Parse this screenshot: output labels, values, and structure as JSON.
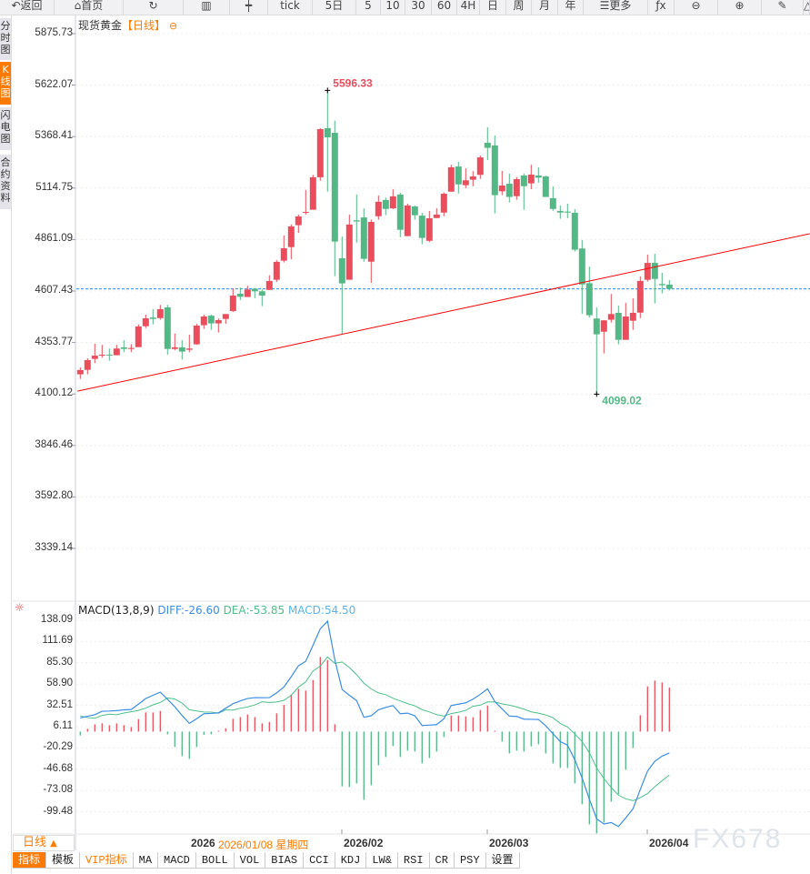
{
  "toolbar": [
    {
      "label": "返回",
      "icon": "back-arrow-icon"
    },
    {
      "label": "首页",
      "icon": "home-icon"
    },
    {
      "label": "",
      "icon": "refresh-icon"
    },
    {
      "label": "",
      "icon": "bar-chart-icon"
    },
    {
      "label": "",
      "icon": "candlestick-icon"
    },
    {
      "label": "tick"
    },
    {
      "label": "5日"
    },
    {
      "label": "5"
    },
    {
      "label": "10"
    },
    {
      "label": "30"
    },
    {
      "label": "60"
    },
    {
      "label": "4H"
    },
    {
      "label": "日"
    },
    {
      "label": "周"
    },
    {
      "label": "月"
    },
    {
      "label": "年"
    },
    {
      "label": "更多",
      "icon": "menu-icon"
    },
    {
      "label": "",
      "icon": "function-fx-icon"
    },
    {
      "label": "",
      "icon": "zoom-out-icon"
    },
    {
      "label": "",
      "icon": "zoom-in-icon"
    },
    {
      "label": "",
      "icon": "pen-icon"
    },
    {
      "label": "",
      "icon": "triangle-icon"
    }
  ],
  "sidebar": [
    {
      "label": "分时图"
    },
    {
      "label": "K线图",
      "active": true
    },
    {
      "label": "闪电图"
    },
    {
      "label": "合约资料"
    }
  ],
  "chart_title": {
    "name": "现货黄金",
    "period": "【日线】"
  },
  "colors": {
    "up": "#eb4d5c",
    "down": "#52b986",
    "diff": "#3a8ee6",
    "dea": "#4cc08a",
    "last_price_line": "#1e90ff",
    "trendline": "#ff0000",
    "accent": "#ff7a00"
  },
  "chart_data": [
    {
      "type": "candlestick",
      "title": "现货黄金【日线】",
      "yticks": [
        "5875.73",
        "5622.07",
        "5368.41",
        "5114.75",
        "4861.09",
        "4607.43",
        "4353.77",
        "4100.12",
        "3846.46",
        "3592.80",
        "3339.14"
      ],
      "ylim": [
        3339.14,
        5875.73
      ],
      "grid": true,
      "xticks": [
        "2026",
        "2026/02",
        "2026/03",
        "2026/04"
      ],
      "crosshair_date": "2026/01/08 星期四",
      "max_label": "5596.33",
      "min_label": "4099.02",
      "last_price": 4618,
      "trendline": [
        [
          -0.4,
          4114
        ],
        [
          100.3,
          4890
        ]
      ],
      "ohlc": [
        [
          4197,
          4231,
          4174,
          4218
        ],
        [
          4219,
          4276,
          4197,
          4267
        ],
        [
          4273,
          4348,
          4252,
          4289
        ],
        [
          4289,
          4342,
          4279,
          4294
        ],
        [
          4294,
          4324,
          4264,
          4291
        ],
        [
          4291,
          4342,
          4291,
          4324
        ],
        [
          4330,
          4365,
          4306,
          4322
        ],
        [
          4322,
          4346,
          4306,
          4327
        ],
        [
          4331,
          4443,
          4331,
          4433
        ],
        [
          4434,
          4491,
          4425,
          4473
        ],
        [
          4477,
          4518,
          4443,
          4470
        ],
        [
          4474,
          4539,
          4466,
          4518
        ],
        [
          4527,
          4539,
          4294,
          4322
        ],
        [
          4322,
          4398,
          4316,
          4330
        ],
        [
          4330,
          4365,
          4270,
          4309
        ],
        [
          4318,
          4392,
          4306,
          4324
        ],
        [
          4345,
          4446,
          4342,
          4437
        ],
        [
          4439,
          4491,
          4421,
          4482
        ],
        [
          4486,
          4491,
          4416,
          4448
        ],
        [
          4448,
          4473,
          4403,
          4464
        ],
        [
          4470,
          4494,
          4446,
          4494
        ],
        [
          4509,
          4621,
          4504,
          4585
        ],
        [
          4594,
          4625,
          4563,
          4579
        ],
        [
          4578,
          4634,
          4578,
          4615
        ],
        [
          4619,
          4622,
          4572,
          4606
        ],
        [
          4606,
          4615,
          4533,
          4585
        ],
        [
          4613,
          4685,
          4613,
          4657
        ],
        [
          4663,
          4760,
          4652,
          4751
        ],
        [
          4757,
          4881,
          4748,
          4818
        ],
        [
          4824,
          4936,
          4764,
          4926
        ],
        [
          4932,
          4984,
          4894,
          4975
        ],
        [
          4993,
          5106,
          4984,
          4997
        ],
        [
          5008,
          5180,
          5008,
          5168
        ],
        [
          5168,
          5410,
          5151,
          5405
        ],
        [
          5410,
          5596.33,
          5097,
          5365
        ],
        [
          5387,
          5447,
          4681,
          4851
        ],
        [
          4769,
          4876,
          4395,
          4645
        ],
        [
          4663,
          4984,
          4663,
          4935
        ],
        [
          4956,
          5083,
          4846,
          4950
        ],
        [
          4970,
          5015,
          4752,
          4766
        ],
        [
          4752,
          4960,
          4648,
          4948
        ],
        [
          4976,
          5078,
          4959,
          5047
        ],
        [
          5056,
          5068,
          4981,
          5012
        ],
        [
          5015,
          5109,
          5011,
          5074
        ],
        [
          5083,
          5091,
          4873,
          4909
        ],
        [
          4878,
          5038,
          4878,
          5029
        ],
        [
          5024,
          5029,
          4959,
          4981
        ],
        [
          4979,
          4993,
          4838,
          4869
        ],
        [
          4855,
          5002,
          4848,
          4966
        ],
        [
          4967,
          5015,
          4967,
          4984
        ],
        [
          4994,
          5093,
          4976,
          5087
        ],
        [
          5097,
          5230,
          5097,
          5217
        ],
        [
          5221,
          5244,
          5088,
          5133
        ],
        [
          5129,
          5212,
          5114,
          5153
        ],
        [
          5156,
          5198,
          5124,
          5172
        ],
        [
          5180,
          5275,
          5160,
          5266
        ],
        [
          5338,
          5414,
          5253,
          5313
        ],
        [
          5325,
          5374,
          4990,
          5080
        ],
        [
          5099,
          5199,
          5080,
          5127
        ],
        [
          5136,
          5186,
          5044,
          5071
        ],
        [
          5075,
          5169,
          5057,
          5159
        ],
        [
          5177,
          5186,
          5008,
          5124
        ],
        [
          5138,
          5230,
          5109,
          5181
        ],
        [
          5177,
          5217,
          5141,
          5166
        ],
        [
          5172,
          5176,
          5071,
          5071
        ],
        [
          5065,
          5123,
          5003,
          5012
        ],
        [
          5002,
          5029,
          4963,
          4994
        ],
        [
          4999,
          5038,
          4966,
          4994
        ],
        [
          4993,
          5011,
          4802,
          4811
        ],
        [
          4817,
          4858,
          4495,
          4640
        ],
        [
          4646,
          4728,
          4477,
          4488
        ],
        [
          4472,
          4527,
          4099.02,
          4394
        ],
        [
          4407,
          4463,
          4300,
          4463
        ],
        [
          4466,
          4593,
          4452,
          4494
        ],
        [
          4500,
          4536,
          4345,
          4367
        ],
        [
          4367,
          4549,
          4367,
          4482
        ],
        [
          4461,
          4572,
          4416,
          4500
        ],
        [
          4501,
          4679,
          4474,
          4657
        ],
        [
          4663,
          4787,
          4654,
          4746
        ],
        [
          4746,
          4791,
          4546,
          4667
        ],
        [
          4642,
          4697,
          4596,
          4636
        ],
        [
          4639,
          4661,
          4610,
          4618
        ]
      ]
    },
    {
      "type": "macd",
      "title": "MACD(13,8,9)",
      "legend": {
        "diff": "DIFF:-26.60",
        "dea": "DEA:-53.85",
        "macd": "MACD:54.50"
      },
      "yticks": [
        "138.09",
        "111.69",
        "85.30",
        "58.90",
        "32.51",
        "6.11",
        "-20.29",
        "-46.68",
        "-73.08",
        "-99.48"
      ],
      "diff": [
        16.9,
        19,
        21,
        25.2,
        25.5,
        26,
        27,
        27.4,
        34,
        41,
        45,
        48.9,
        40,
        30.8,
        20,
        10.2,
        16,
        22.2,
        22.5,
        23.3,
        29,
        34.6,
        38,
        41,
        42.1,
        42,
        42.1,
        48,
        55.3,
        68,
        81.6,
        87.2,
        107,
        127.5,
        136.9,
        89.1,
        52.3,
        45,
        38.4,
        17.7,
        19.6,
        27.1,
        30,
        32.3,
        22.2,
        22.9,
        19.6,
        7.5,
        8,
        8.6,
        15.8,
        32.3,
        34,
        35.7,
        40.2,
        46.2,
        53,
        37.2,
        28.2,
        19.2,
        18.8,
        15.4,
        15.2,
        15,
        7.1,
        -2.6,
        -12.4,
        -16.9,
        -35,
        -57.5,
        -83.8,
        -108.3,
        -114.6,
        -112.8,
        -117.7,
        -107.1,
        -95.8,
        -71.8,
        -48.9,
        -36.8,
        -30.5,
        -26.6
      ],
      "macd": [
        -4.9,
        3.4,
        9,
        10.2,
        7.9,
        10.2,
        7.9,
        5.6,
        15.4,
        23.7,
        23.7,
        25.6,
        -3.4,
        -19.2,
        -30.5,
        -33.8,
        -19.2,
        -4.1,
        -3.4,
        1,
        4.1,
        15.8,
        18,
        21.1,
        18,
        10.2,
        12,
        22.6,
        33.1,
        46.2,
        53,
        50.8,
        63.9,
        92.5,
        88.7,
        9,
        -68.1,
        -68.8,
        -64.3,
        -84.6,
        -66.6,
        -41.7,
        -31.6,
        -18,
        -31.6,
        -23.7,
        -24.8,
        -39.5,
        -32.7,
        -24.8,
        -6.8,
        19.9,
        19.9,
        18.8,
        17.7,
        26.7,
        32.3,
        1.1,
        -12.4,
        -27.1,
        -23.7,
        -24.8,
        -18.4,
        -15.8,
        -27.1,
        -39.5,
        -45.1,
        -45.1,
        -64.3,
        -90.2,
        -115.1,
        -126.3,
        -112.8,
        -86.9,
        -77.8,
        -47.4,
        -20.3,
        20.3,
        56,
        63.2,
        60.9,
        54.5
      ]
    }
  ],
  "period_selector": {
    "label": "日线",
    "icon": "triangle-up-icon"
  },
  "bottom_tabs": [
    {
      "label": "指标",
      "active": true
    },
    {
      "label": "模板"
    },
    {
      "label": "VIP指标",
      "vip": true
    },
    {
      "label": "MA"
    },
    {
      "label": "MACD"
    },
    {
      "label": "BOLL"
    },
    {
      "label": "VOL"
    },
    {
      "label": "BIAS"
    },
    {
      "label": "CCI"
    },
    {
      "label": "KDJ"
    },
    {
      "label": "LW&"
    },
    {
      "label": "RSI"
    },
    {
      "label": "CR"
    },
    {
      "label": "PSY"
    },
    {
      "label": "设置"
    }
  ],
  "watermark": "FX678"
}
